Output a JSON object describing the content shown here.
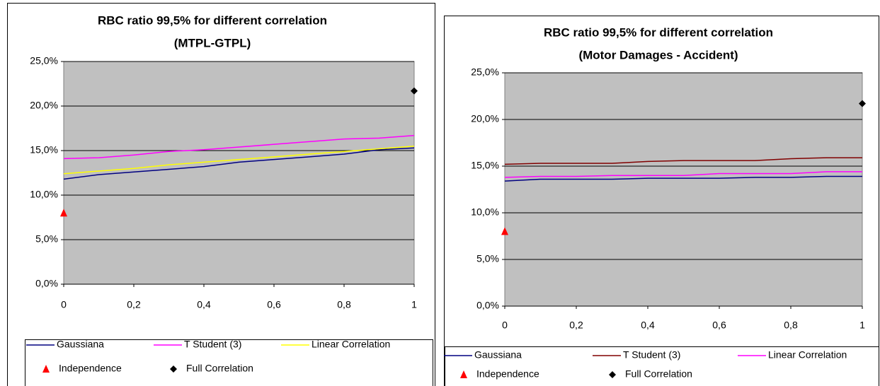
{
  "chart_data": [
    {
      "type": "line",
      "title": "RBC ratio 99,5% for different correlation",
      "subtitle": "(MTPL-GTPL)",
      "x": [
        0,
        0.1,
        0.2,
        0.3,
        0.4,
        0.5,
        0.6,
        0.7,
        0.8,
        0.9,
        1
      ],
      "xlim": [
        0,
        1
      ],
      "xticks": [
        0,
        {
          "value": 0.2,
          "label": "0,2"
        },
        {
          "value": 0.4,
          "label": "0,4"
        },
        {
          "value": 0.6,
          "label": "0,6"
        },
        {
          "value": 0.8,
          "label": "0,8"
        },
        1
      ],
      "ylim": [
        0,
        25
      ],
      "yticks": [
        {
          "value": 0,
          "label": "0,0%"
        },
        {
          "value": 5,
          "label": "5,0%"
        },
        {
          "value": 10,
          "label": "10,0%"
        },
        {
          "value": 15,
          "label": "15,0%"
        },
        {
          "value": 20,
          "label": "20,0%"
        },
        {
          "value": 25,
          "label": "25,0%"
        }
      ],
      "grid": true,
      "series": [
        {
          "name": "Gaussiana",
          "color": "#000080",
          "values": [
            11.8,
            12.3,
            12.6,
            12.9,
            13.2,
            13.7,
            14.0,
            14.3,
            14.6,
            15.1,
            15.3
          ]
        },
        {
          "name": "T Student (3)",
          "color": "#ff00ff",
          "values": [
            14.1,
            14.2,
            14.5,
            14.9,
            15.1,
            15.4,
            15.7,
            16.0,
            16.3,
            16.4,
            16.7
          ]
        },
        {
          "name": "Linear Correlation",
          "color": "#ffff00",
          "values": [
            12.4,
            12.7,
            13.0,
            13.4,
            13.7,
            14.0,
            14.3,
            14.6,
            14.9,
            15.2,
            15.5
          ]
        },
        {
          "name": "Independence",
          "color": "#ff0000",
          "marker": "triangle",
          "values": [
            8.0,
            null,
            null,
            null,
            null,
            null,
            null,
            null,
            null,
            null,
            null
          ]
        },
        {
          "name": "Full Correlation",
          "color": "#000000",
          "marker": "diamond",
          "values": [
            null,
            null,
            null,
            null,
            null,
            null,
            null,
            null,
            null,
            null,
            21.7
          ]
        }
      ]
    },
    {
      "type": "line",
      "title": "RBC ratio 99,5% for different correlation",
      "subtitle": "(Motor Damages - Accident)",
      "x": [
        0,
        0.1,
        0.2,
        0.3,
        0.4,
        0.5,
        0.6,
        0.7,
        0.8,
        0.9,
        1
      ],
      "xlim": [
        0,
        1
      ],
      "xticks": [
        0,
        {
          "value": 0.2,
          "label": "0,2"
        },
        {
          "value": 0.4,
          "label": "0,4"
        },
        {
          "value": 0.6,
          "label": "0,6"
        },
        {
          "value": 0.8,
          "label": "0,8"
        },
        1
      ],
      "ylim": [
        0,
        25
      ],
      "yticks": [
        {
          "value": 0,
          "label": "0,0%"
        },
        {
          "value": 5,
          "label": "5,0%"
        },
        {
          "value": 10,
          "label": "10,0%"
        },
        {
          "value": 15,
          "label": "15,0%"
        },
        {
          "value": 20,
          "label": "20,0%"
        },
        {
          "value": 25,
          "label": "25,0%"
        }
      ],
      "grid": true,
      "series": [
        {
          "name": "Gaussiana",
          "color": "#000080",
          "values": [
            13.4,
            13.6,
            13.6,
            13.6,
            13.7,
            13.7,
            13.7,
            13.8,
            13.8,
            13.9,
            13.9
          ]
        },
        {
          "name": "T Student (3)",
          "color": "#800000",
          "values": [
            15.2,
            15.3,
            15.3,
            15.3,
            15.5,
            15.6,
            15.6,
            15.6,
            15.8,
            15.9,
            15.9
          ]
        },
        {
          "name": "Linear Correlation",
          "color": "#ff00ff",
          "values": [
            13.8,
            13.9,
            13.9,
            14.0,
            14.0,
            14.0,
            14.2,
            14.2,
            14.2,
            14.4,
            14.4
          ]
        },
        {
          "name": "Independence",
          "color": "#ff0000",
          "marker": "triangle",
          "values": [
            8.0,
            null,
            null,
            null,
            null,
            null,
            null,
            null,
            null,
            null,
            null
          ]
        },
        {
          "name": "Full Correlation",
          "color": "#000000",
          "marker": "diamond",
          "values": [
            null,
            null,
            null,
            null,
            null,
            null,
            null,
            null,
            null,
            null,
            21.7
          ]
        }
      ]
    }
  ]
}
